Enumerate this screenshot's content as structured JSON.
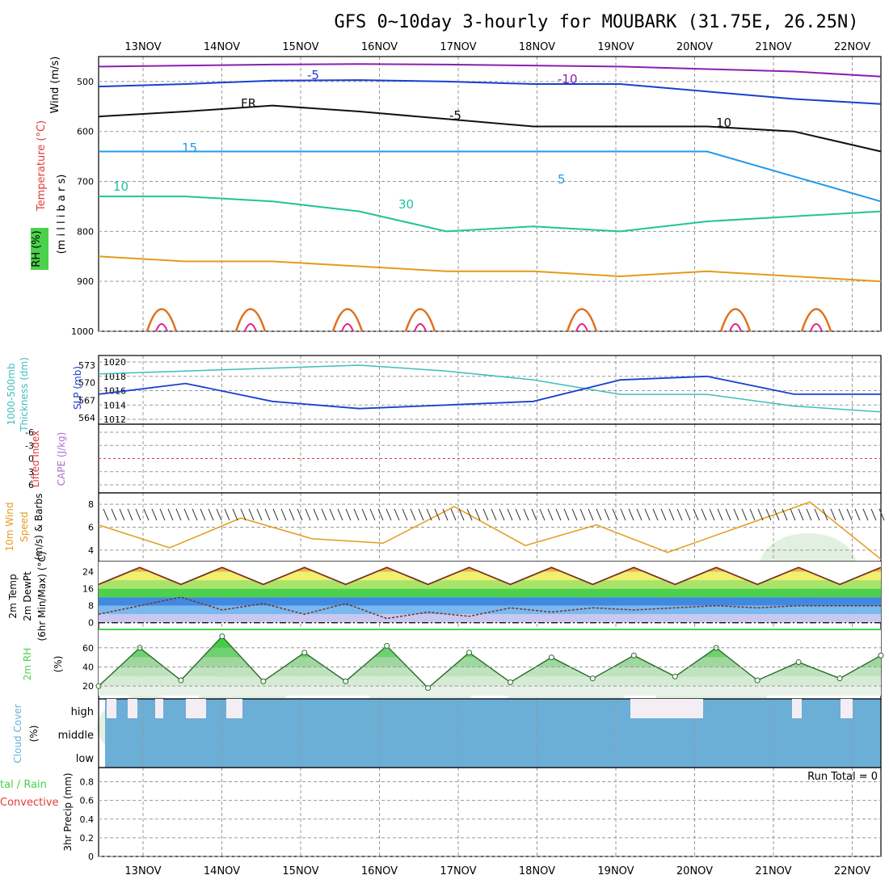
{
  "title": "GFS 0~10day 3-hourly for MOUBARK (31.75E, 26.25N)",
  "colors": {
    "frame": "#000000",
    "grid": "#999999",
    "purple": "#8a1fb0",
    "blue": "#1b3fd0",
    "lightblue": "#1f9be6",
    "teal": "#1fc49a",
    "orange": "#e59a1a",
    "darkorange": "#e0701a",
    "magenta": "#e0208a",
    "cyan": "#3fbdbd",
    "cloud": "#6baed6",
    "green": "#4bd14b",
    "red": "#e03a3a"
  },
  "labels": {
    "wind_ms": "Wind (m/s)",
    "temperature": "Temperature (°C)",
    "millibars": "(m i l l i b a r s)",
    "rh_pct": "RH (%)",
    "thickness": "1000-500mb",
    "thickness2": "Thickness (dm)",
    "slp": "SLP (mb)",
    "lifted": "Lifted Index",
    "cape": "CAPE (J/kg)",
    "wind10_a": "10m Wind",
    "wind10_b": "Speed",
    "wind10_c": "(m/s) & Barbs",
    "t2m_a": "2m Temp",
    "t2m_b": "2m DewPt",
    "t2m_c": "(6hr Min/Max) (°C)",
    "rh2m_a": "2m RH",
    "rh2m_b": "(%)",
    "cloud_a": "Cloud Cover",
    "cloud_b": "(%)",
    "precip_a": "tal / Rain",
    "precip_b": "Convective",
    "precip_c": "3hr Precip (mm)",
    "cloud_high": "high",
    "cloud_middle": "middle",
    "cloud_low": "low",
    "run_total": "Run Total = 0"
  },
  "chart_data": [
    {
      "type": "line",
      "panel": "upper-air",
      "x": [
        "13NOV",
        "14NOV",
        "15NOV",
        "16NOV",
        "17NOV",
        "18NOV",
        "19NOV",
        "20NOV",
        "21NOV",
        "22NOV"
      ],
      "ylabel": "millibars",
      "yticks": [
        500,
        600,
        700,
        800,
        900,
        1000
      ],
      "contour_labels": [
        "-10",
        "-5",
        "FR",
        "-5",
        "10",
        "15",
        "5",
        "10",
        "30"
      ],
      "series": [
        {
          "label": "-10",
          "values": [
            470,
            468,
            466,
            465,
            466,
            468,
            470,
            475,
            480,
            490
          ]
        },
        {
          "label": "-5",
          "values": [
            510,
            505,
            498,
            497,
            500,
            505,
            505,
            520,
            535,
            545
          ]
        },
        {
          "label": "FR",
          "values": [
            570,
            560,
            548,
            560,
            575,
            590,
            590,
            590,
            600,
            640
          ]
        },
        {
          "label": "-5",
          "values": [
            640,
            640,
            640,
            640,
            640,
            640,
            640,
            640,
            690,
            740
          ]
        },
        {
          "label": "10",
          "values": [
            730,
            730,
            740,
            760,
            800,
            790,
            800,
            780,
            770,
            760
          ]
        },
        {
          "label": "15",
          "values": [
            850,
            860,
            860,
            870,
            880,
            880,
            890,
            880,
            890,
            900
          ]
        }
      ]
    },
    {
      "type": "line",
      "panel": "thickness-slp",
      "x": [
        "13NOV",
        "14NOV",
        "15NOV",
        "16NOV",
        "17NOV",
        "18NOV",
        "19NOV",
        "20NOV",
        "21NOV",
        "22NOV"
      ],
      "y_left_ticks": [
        564,
        567,
        570,
        573
      ],
      "y_right_ticks": [
        1012,
        1014,
        1016,
        1018,
        1020
      ],
      "series": [
        {
          "name": "Thickness (dm)",
          "values": [
            571.5,
            572,
            572.5,
            573,
            572,
            570.5,
            568,
            568,
            566,
            565
          ]
        },
        {
          "name": "SLP (mb)",
          "values": [
            1015.5,
            1017,
            1014.5,
            1013.5,
            1014,
            1014.5,
            1017.5,
            1018,
            1015.5,
            1015.5
          ]
        }
      ]
    },
    {
      "type": "line",
      "panel": "lifted-cape",
      "ytick_labels": [
        "-6",
        "-3",
        "0",
        "3",
        "6"
      ],
      "series": [
        {
          "name": "Lifted Index",
          "values": [
            0,
            0,
            0,
            0,
            0,
            0,
            0,
            0,
            0,
            0
          ]
        }
      ]
    },
    {
      "type": "line",
      "panel": "wind10",
      "yticks": [
        4,
        6,
        8
      ],
      "series": [
        {
          "name": "10m Wind Speed",
          "values": [
            6.2,
            4.2,
            6.8,
            5.0,
            4.6,
            7.8,
            4.4,
            6.2,
            3.8,
            6.0,
            8.2,
            3.2
          ]
        }
      ]
    },
    {
      "type": "area",
      "panel": "temp2m",
      "yticks": [
        0,
        8,
        16,
        24
      ],
      "series": [
        {
          "name": "2m Temp",
          "values": [
            18,
            26,
            18,
            26,
            18,
            26,
            18,
            26,
            18,
            26,
            18,
            26,
            18,
            26,
            18,
            26,
            18,
            26,
            18,
            26
          ]
        },
        {
          "name": "2m DewPt",
          "values": [
            4,
            8,
            12,
            6,
            9,
            4,
            9,
            2,
            5,
            3,
            7,
            5,
            7,
            6,
            7,
            8,
            7,
            8,
            8,
            8
          ]
        }
      ]
    },
    {
      "type": "area",
      "panel": "rh2m",
      "yticks": [
        20,
        40,
        60
      ],
      "series": [
        {
          "name": "2m RH",
          "values": [
            20,
            60,
            26,
            72,
            25,
            55,
            25,
            62,
            18,
            55,
            24,
            50,
            28,
            52,
            30,
            60,
            26,
            45,
            28,
            52
          ]
        }
      ]
    },
    {
      "type": "bar",
      "panel": "cloud",
      "levels": [
        "high",
        "middle",
        "low"
      ],
      "series": [
        {
          "name": "Cloud Cover",
          "values": [
            100,
            100,
            100,
            100,
            100,
            100,
            100,
            100,
            100,
            100
          ]
        }
      ]
    },
    {
      "type": "bar",
      "panel": "precip",
      "yticks": [
        0,
        0.2,
        0.4,
        0.6,
        0.8
      ],
      "series": [
        {
          "name": "3hr Precip",
          "values": [
            0,
            0,
            0,
            0,
            0,
            0,
            0,
            0,
            0,
            0
          ]
        }
      ]
    }
  ]
}
